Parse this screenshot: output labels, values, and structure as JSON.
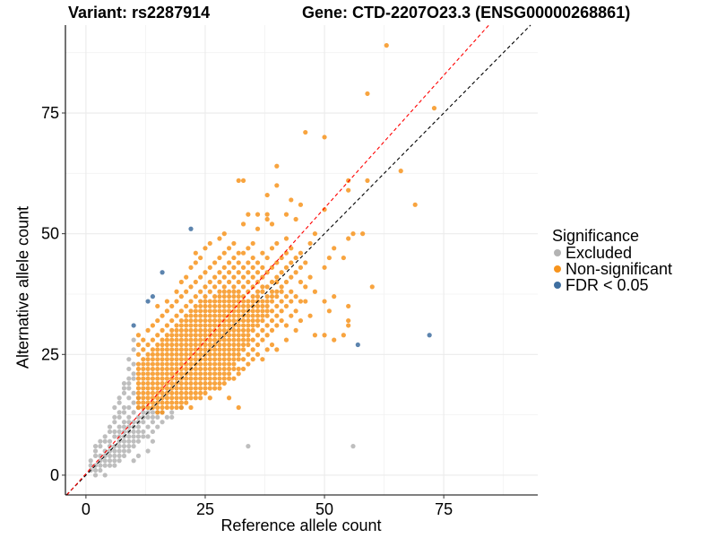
{
  "chart_data": {
    "type": "scatter",
    "title_left": "Variant: rs2287914",
    "title_right": "Gene: CTD-2207O23.3 (ENSG00000268861)",
    "xlabel": "Reference allele count",
    "ylabel": "Alternative allele count",
    "xlim": [
      -4.3,
      94.7
    ],
    "ylim": [
      -4.1,
      93.2
    ],
    "xticks": [
      0,
      25,
      50,
      75
    ],
    "yticks": [
      0,
      25,
      50,
      75
    ],
    "minor_grid": [
      12.5,
      37.5,
      62.5,
      87.5
    ],
    "grid": true,
    "legend": {
      "title": "Significance",
      "position": "right",
      "entries": [
        {
          "label": "Excluded",
          "color": "#b3b3b3"
        },
        {
          "label": "Non-significant",
          "color": "#f7941d"
        },
        {
          "label": "FDR < 0.05",
          "color": "#3f6fa0"
        }
      ]
    },
    "reference_lines": [
      {
        "name": "identity",
        "slope": 1.0,
        "intercept": 0,
        "color": "#000000",
        "dash": "dashed"
      },
      {
        "name": "fitted",
        "slope": 1.1,
        "intercept": 0.3,
        "color": "#ff0000",
        "dash": "dashed"
      }
    ],
    "series": [
      {
        "name": "Excluded",
        "color": "#b3b3b3",
        "columns": {
          "1": [
            1,
            2,
            3
          ],
          "2": [
            0,
            1,
            2,
            4,
            5,
            6
          ],
          "3": [
            1,
            2,
            3,
            4,
            6,
            7
          ],
          "4": [
            0,
            2,
            3,
            4,
            5,
            7,
            8
          ],
          "5": [
            2,
            3,
            4,
            5,
            6,
            7,
            9,
            10
          ],
          "6": [
            2,
            3,
            4,
            5,
            6,
            8,
            9,
            11,
            12,
            14
          ],
          "7": [
            3,
            4,
            5,
            6,
            7,
            8,
            9,
            10,
            12,
            13,
            15,
            16
          ],
          "8": [
            4,
            5,
            6,
            7,
            8,
            9,
            10,
            11,
            13,
            14,
            17,
            18,
            19
          ],
          "9": [
            5,
            6,
            7,
            8,
            9,
            10,
            11,
            12,
            14,
            16,
            18,
            19,
            20,
            22,
            24
          ],
          "10": [
            3,
            6,
            7,
            8,
            9,
            10,
            11,
            13,
            15,
            17,
            20,
            21,
            23,
            26,
            28
          ],
          "11": [
            4,
            7,
            8,
            9,
            10,
            11,
            12,
            14,
            16
          ],
          "12": [
            8,
            9,
            11,
            12,
            13,
            14
          ],
          "13": [
            5,
            8,
            10,
            12,
            13
          ],
          "14": [
            7,
            9,
            11,
            12,
            13
          ],
          "15": [
            10,
            12,
            13
          ],
          "16": [
            11,
            13
          ],
          "17": [
            12
          ],
          "18": [
            12,
            13
          ],
          "20": [
            14
          ],
          "34": [
            6
          ],
          "56": [
            6
          ]
        }
      },
      {
        "name": "Non-significant",
        "color": "#f7941d",
        "columns": {
          "11": [
            14,
            15,
            16,
            17,
            18,
            19,
            20,
            21,
            22,
            23,
            25,
            27,
            29
          ],
          "12": [
            14,
            15,
            16,
            17,
            18,
            19,
            20,
            21,
            22,
            23,
            24,
            26,
            28
          ],
          "13": [
            14,
            15,
            16,
            17,
            18,
            19,
            20,
            21,
            22,
            23,
            24,
            25,
            27,
            30
          ],
          "14": [
            14,
            15,
            16,
            17,
            18,
            19,
            20,
            21,
            22,
            23,
            24,
            25,
            26,
            28,
            31
          ],
          "15": [
            13,
            14,
            15,
            16,
            17,
            18,
            19,
            20,
            21,
            22,
            23,
            24,
            25,
            26,
            27,
            29,
            32,
            35
          ],
          "16": [
            13,
            14,
            15,
            16,
            17,
            18,
            19,
            20,
            21,
            22,
            23,
            24,
            25,
            26,
            27,
            28,
            30,
            33
          ],
          "17": [
            14,
            15,
            16,
            17,
            18,
            19,
            20,
            21,
            22,
            23,
            24,
            25,
            26,
            27,
            28,
            29,
            31,
            34,
            36
          ],
          "18": [
            14,
            15,
            16,
            17,
            18,
            19,
            20,
            21,
            22,
            23,
            24,
            25,
            26,
            27,
            28,
            29,
            30,
            32,
            35
          ],
          "19": [
            14,
            15,
            16,
            17,
            18,
            19,
            20,
            21,
            22,
            23,
            24,
            25,
            26,
            27,
            28,
            29,
            30,
            31,
            33,
            36,
            38
          ],
          "20": [
            14,
            15,
            16,
            17,
            18,
            19,
            20,
            21,
            22,
            23,
            24,
            25,
            26,
            27,
            28,
            29,
            30,
            31,
            32,
            34,
            37,
            40
          ],
          "21": [
            15,
            16,
            17,
            18,
            19,
            20,
            21,
            22,
            23,
            24,
            25,
            26,
            27,
            28,
            29,
            30,
            31,
            32,
            33,
            35,
            38,
            41
          ],
          "22": [
            14,
            16,
            17,
            18,
            19,
            20,
            21,
            22,
            23,
            24,
            25,
            26,
            27,
            28,
            29,
            30,
            31,
            32,
            33,
            34,
            36,
            39,
            43
          ],
          "23": [
            16,
            17,
            18,
            19,
            20,
            21,
            22,
            23,
            24,
            25,
            26,
            27,
            28,
            29,
            30,
            31,
            32,
            33,
            34,
            35,
            37,
            40,
            44,
            46
          ],
          "24": [
            16,
            17,
            18,
            19,
            20,
            21,
            22,
            23,
            24,
            25,
            26,
            27,
            28,
            29,
            30,
            31,
            32,
            33,
            34,
            35,
            36,
            38,
            41,
            45
          ],
          "25": [
            17,
            18,
            19,
            20,
            21,
            22,
            23,
            24,
            25,
            26,
            27,
            28,
            29,
            30,
            31,
            32,
            33,
            34,
            35,
            36,
            37,
            39,
            42,
            47
          ],
          "26": [
            16,
            18,
            19,
            20,
            21,
            22,
            23,
            24,
            25,
            26,
            27,
            28,
            29,
            30,
            31,
            32,
            33,
            34,
            35,
            36,
            38,
            40,
            43,
            48
          ],
          "27": [
            18,
            19,
            20,
            21,
            22,
            23,
            24,
            25,
            26,
            27,
            28,
            29,
            30,
            31,
            32,
            33,
            34,
            35,
            36,
            37,
            39,
            41,
            44
          ],
          "28": [
            18,
            19,
            20,
            21,
            22,
            23,
            24,
            25,
            26,
            27,
            28,
            29,
            30,
            31,
            32,
            33,
            34,
            35,
            36,
            37,
            38,
            40,
            42,
            45,
            49
          ],
          "29": [
            19,
            20,
            21,
            22,
            23,
            24,
            25,
            26,
            27,
            28,
            29,
            30,
            31,
            32,
            33,
            34,
            35,
            36,
            37,
            38,
            39,
            41,
            43,
            46,
            50
          ],
          "30": [
            16,
            20,
            21,
            22,
            23,
            24,
            25,
            26,
            27,
            28,
            29,
            30,
            31,
            32,
            33,
            34,
            35,
            36,
            37,
            38,
            40,
            42,
            44,
            47
          ],
          "31": [
            20,
            22,
            23,
            24,
            25,
            26,
            27,
            28,
            29,
            30,
            31,
            32,
            33,
            34,
            35,
            36,
            37,
            38,
            39,
            41,
            43,
            45,
            48
          ],
          "32": [
            14,
            21,
            22,
            24,
            25,
            26,
            27,
            28,
            29,
            30,
            31,
            32,
            33,
            34,
            35,
            36,
            37,
            38,
            40,
            42,
            44,
            46,
            61
          ],
          "33": [
            22,
            24,
            26,
            27,
            28,
            29,
            30,
            31,
            32,
            33,
            34,
            35,
            36,
            37,
            39,
            41,
            43,
            46,
            52,
            61
          ],
          "34": [
            23,
            25,
            27,
            28,
            29,
            30,
            31,
            32,
            33,
            34,
            35,
            36,
            38,
            40,
            42,
            44,
            47,
            54
          ],
          "35": [
            24,
            26,
            28,
            30,
            31,
            32,
            33,
            34,
            35,
            36,
            37,
            39,
            41,
            43,
            45,
            48
          ],
          "36": [
            25,
            27,
            29,
            31,
            32,
            33,
            34,
            35,
            36,
            37,
            38,
            40,
            42,
            44,
            51,
            54
          ],
          "37": [
            24,
            28,
            30,
            32,
            33,
            34,
            35,
            36,
            38,
            39,
            41,
            43,
            46
          ],
          "38": [
            26,
            29,
            31,
            33,
            34,
            35,
            36,
            37,
            39,
            42,
            45,
            53,
            54,
            58
          ],
          "39": [
            27,
            30,
            32,
            34,
            36,
            37,
            38,
            40,
            43,
            47,
            52
          ],
          "40": [
            26,
            31,
            33,
            35,
            37,
            38,
            40,
            41,
            44,
            48,
            60,
            64
          ],
          "41": [
            32,
            34,
            36,
            38,
            39,
            42,
            45
          ],
          "42": [
            28,
            31,
            35,
            37,
            40,
            43,
            46,
            49,
            54
          ],
          "43": [
            33,
            36,
            38,
            41,
            44,
            47,
            57
          ],
          "44": [
            30,
            34,
            37,
            42,
            45,
            53
          ],
          "45": [
            32,
            36,
            40,
            43,
            46,
            56
          ],
          "46": [
            36,
            39,
            44,
            71
          ],
          "47": [
            33,
            41,
            48
          ],
          "48": [
            29,
            38,
            50
          ],
          "50": [
            29,
            36,
            43,
            55,
            70
          ],
          "51": [
            34,
            45
          ],
          "52": [
            28,
            37,
            47
          ],
          "54": [
            29,
            45
          ],
          "55": [
            31,
            32,
            35,
            49,
            59,
            61
          ],
          "56": [
            50
          ],
          "58": [
            50
          ],
          "59": [
            61,
            79
          ],
          "60": [
            39
          ],
          "66": [
            63
          ],
          "69": [
            56
          ],
          "63": [
            89
          ],
          "73": [
            76
          ]
        }
      },
      {
        "name": "FDR < 0.05",
        "color": "#3f6fa0",
        "points": [
          [
            10,
            31
          ],
          [
            13,
            36
          ],
          [
            14,
            37
          ],
          [
            16,
            42
          ],
          [
            22,
            51
          ],
          [
            57,
            27
          ],
          [
            72,
            29
          ]
        ]
      }
    ]
  }
}
